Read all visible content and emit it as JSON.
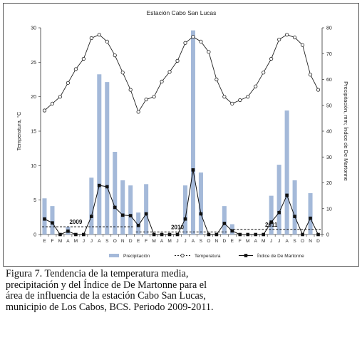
{
  "chart_data": {
    "type": "bar+line",
    "title": "Estación Cabo San Lucas",
    "ylabel_left": "Temperatura, °C",
    "ylabel_right": "Precipitación, mm; Índice de De Martonne",
    "ylim_left": [
      0,
      30
    ],
    "ylim_right": [
      0,
      80
    ],
    "yticks_left": [
      0,
      5,
      10,
      15,
      20,
      25,
      30
    ],
    "yticks_right": [
      0,
      10,
      20,
      30,
      40,
      50,
      60,
      70,
      80
    ],
    "categories": [
      "E",
      "F",
      "M",
      "A",
      "M",
      "J",
      "J",
      "A",
      "S",
      "O",
      "N",
      "D",
      "E",
      "F",
      "M",
      "A",
      "M",
      "J",
      "J",
      "A",
      "S",
      "O",
      "N",
      "D",
      "E",
      "F",
      "M",
      "A",
      "M",
      "J",
      "J",
      "A",
      "S",
      "O",
      "N",
      "D"
    ],
    "years": [
      {
        "label": "2009",
        "start": 0,
        "end": 11,
        "label_index": 4
      },
      {
        "label": "2010",
        "start": 12,
        "end": 23,
        "label_index": 17
      },
      {
        "label": "2011",
        "start": 24,
        "end": 35,
        "label_index": 29
      }
    ],
    "series": [
      {
        "name": "Precipitación",
        "type": "bar",
        "axis": "right",
        "values": [
          14,
          11,
          0,
          3,
          0,
          0,
          22,
          62,
          59,
          32,
          21,
          19,
          8.5,
          19.5,
          0,
          0,
          0,
          0,
          19,
          79,
          24,
          0,
          0,
          11,
          4,
          0,
          0,
          0,
          0,
          15,
          27,
          48,
          21,
          0,
          16,
          0
        ]
      },
      {
        "name": "Temperatura",
        "type": "line",
        "axis": "left",
        "marker": "circle-open",
        "values": [
          18,
          19,
          20,
          22,
          24,
          25.5,
          28.5,
          29,
          28,
          26,
          23.5,
          21,
          17.8,
          19.6,
          20,
          22.2,
          23.6,
          25.2,
          27.8,
          28.7,
          28,
          26.5,
          22.5,
          20,
          19,
          19.5,
          20,
          21.5,
          23.5,
          25.5,
          28.3,
          29,
          28.6,
          27.5,
          23.2,
          21
        ]
      },
      {
        "name": "Índice de De Martonne",
        "type": "line",
        "axis": "right",
        "marker": "square-filled",
        "values": [
          6,
          4.5,
          0,
          1.3,
          0,
          0,
          7,
          19,
          18.5,
          10.5,
          7.5,
          7.3,
          3.5,
          8,
          0,
          0,
          0,
          0,
          6,
          25,
          8,
          0,
          0,
          4.3,
          1.4,
          0,
          0,
          0,
          0,
          4.8,
          8.5,
          15.2,
          7,
          0,
          6.3,
          0
        ]
      }
    ],
    "mean_lines": [
      {
        "start": 0,
        "end": 11,
        "value": 3
      },
      {
        "start": 12,
        "end": 23,
        "value": 1
      },
      {
        "start": 24,
        "end": 35,
        "value": 2
      }
    ],
    "legend_position": "bottom",
    "grid": false
  },
  "caption": "Figura 7. Tendencia de la temperatura media, precipitación y del Índice de De Martonne para el área de influencia de la estación Cabo San Lucas, municipio de Los Cabos, BCS. Periodo 2009-2011."
}
